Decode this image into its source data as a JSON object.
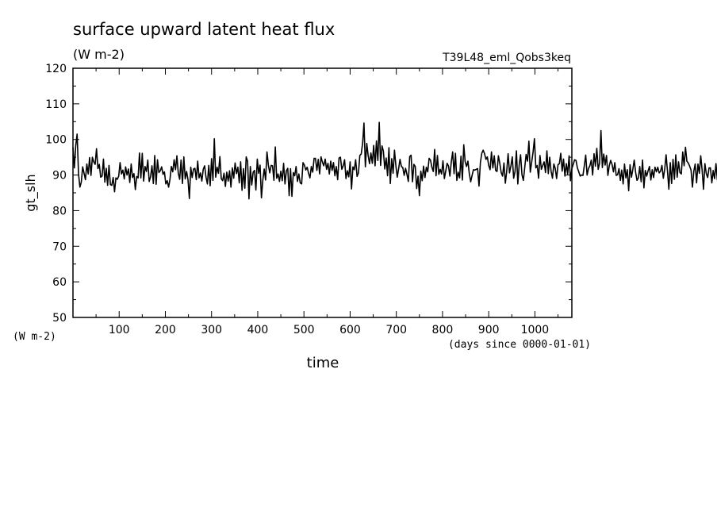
{
  "chart_data": {
    "type": "line",
    "title": "surface upward latent heat flux",
    "subtitle": "(W m-2)",
    "experiment": "T39L48_eml_Qobs3keq",
    "xlabel": "time",
    "xunits": "(days since 0000-01-01)",
    "ylabel": "gt_slh",
    "yunits": "(W m-2)",
    "xlim": [
      0,
      1080
    ],
    "ylim": [
      50,
      120
    ],
    "xticks": [
      100,
      200,
      300,
      400,
      500,
      600,
      700,
      800,
      900,
      1000
    ],
    "yticks": [
      50,
      60,
      70,
      80,
      90,
      100,
      110,
      120
    ],
    "grid": false,
    "series": [
      {
        "x_start": 0,
        "x_step": 3,
        "values": [
          97.8,
          92.0,
          98.3,
          101.5,
          90.4,
          86.6,
          88.0,
          92.3,
          90.5,
          88.7,
          93.1,
          90.3,
          94.9,
          89.9,
          95.0,
          93.7,
          93.0,
          97.4,
          91.8,
          93.0,
          89.4,
          89.7,
          94.5,
          88.0,
          91.9,
          87.1,
          92.7,
          87.3,
          87.1,
          89.3,
          85.3,
          89.2,
          88.8,
          89.7,
          93.5,
          90.3,
          91.4,
          88.9,
          92.3,
          90.0,
          91.7,
          87.9,
          93.1,
          89.3,
          90.4,
          85.9,
          89.6,
          89.2,
          96.2,
          89.2,
          96.1,
          88.3,
          92.4,
          91.0,
          94.2,
          88.2,
          89.5,
          92.6,
          87.6,
          95.5,
          87.4,
          94.3,
          90.7,
          91.2,
          92.3,
          90.2,
          90.9,
          87.5,
          88.4,
          86.6,
          88.8,
          92.4,
          90.9,
          94.3,
          91.5,
          95.4,
          90.5,
          88.8,
          94.2,
          87.6,
          95.1,
          88.9,
          91.0,
          88.7,
          83.4,
          92.2,
          89.3,
          91.7,
          91.9,
          88.7,
          93.9,
          89.2,
          90.6,
          88.3,
          91.6,
          92.6,
          89.4,
          87.5,
          92.7,
          87.0,
          94.6,
          88.5,
          100.2,
          89.4,
          92.2,
          90.5,
          95.2,
          89.0,
          88.4,
          90.5,
          86.8,
          90.8,
          88.3,
          91.2,
          86.6,
          92.0,
          89.1,
          93.4,
          90.4,
          92.2,
          87.8,
          93.7,
          85.7,
          91.8,
          86.3,
          95.1,
          93.9,
          83.3,
          92.4,
          87.2,
          90.8,
          91.3,
          85.8,
          94.5,
          90.5,
          92.8,
          83.6,
          88.6,
          91.7,
          88.6,
          96.5,
          92.8,
          90.6,
          92.7,
          92.6,
          88.5,
          97.9,
          89.1,
          90.3,
          88.2,
          91.1,
          88.4,
          93.3,
          87.5,
          91.2,
          91.9,
          84.2,
          91.8,
          84.0,
          90.7,
          89.8,
          92.4,
          88.2,
          90.3,
          87.8,
          87.5,
          93.5,
          92.8,
          91.4,
          92.2,
          90.5,
          89.2,
          92.4,
          90.8,
          94.7,
          94.7,
          91.3,
          94.4,
          90.3,
          95.1,
          93.6,
          92.6,
          94.5,
          91.6,
          93.3,
          90.3,
          93.9,
          91.3,
          93.5,
          89.8,
          92.4,
          88.7,
          94.8,
          95.0,
          91.6,
          92.6,
          94.3,
          89.0,
          91.2,
          89.5,
          93.7,
          86.1,
          92.3,
          91.5,
          94.3,
          89.6,
          90.6,
          95.5,
          95.9,
          98.9,
          104.6,
          92.3,
          98.9,
          95.5,
          93.2,
          96.2,
          93.3,
          98.3,
          92.6,
          99.6,
          94.1,
          104.8,
          92.7,
          98.2,
          96.7,
          91.7,
          94.8,
          89.8,
          97.7,
          87.6,
          94.6,
          90.5,
          97.0,
          92.7,
          89.4,
          91.8,
          94.4,
          92.4,
          92.1,
          89.9,
          91.9,
          90.2,
          88.2,
          95.2,
          95.6,
          88.1,
          93.0,
          92.4,
          86.2,
          89.7,
          84.2,
          91.1,
          88.4,
          92.5,
          89.3,
          92.2,
          90.9,
          94.7,
          94.2,
          92.2,
          91.0,
          97.2,
          89.8,
          95.5,
          90.2,
          91.6,
          90.3,
          94.0,
          89.0,
          91.1,
          93.3,
          92.5,
          89.7,
          93.7,
          96.5,
          90.4,
          96.1,
          88.5,
          90.8,
          89.2,
          95.3,
          88.6,
          98.5,
          93.8,
          92.4,
          93.9,
          90.4,
          88.1,
          89.9,
          91.5,
          91.4,
          91.6,
          91.8,
          86.9,
          93.5,
          96.1,
          97.0,
          96.0,
          94.4,
          95.1,
          92.7,
          91.5,
          96.5,
          92.0,
          95.4,
          91.3,
          91.0,
          95.4,
          93.3,
          90.7,
          89.7,
          93.4,
          87.7,
          91.1,
          96.0,
          90.6,
          92.5,
          95.1,
          89.1,
          91.0,
          96.8,
          87.5,
          92.9,
          95.7,
          90.1,
          88.5,
          92.1,
          95.8,
          93.9,
          99.5,
          90.8,
          93.6,
          96.4,
          100.2,
          92.0,
          92.7,
          89.1,
          95.5,
          91.6,
          92.7,
          93.7,
          90.7,
          96.8,
          90.4,
          95.0,
          91.1,
          89.1,
          93.1,
          91.9,
          89.0,
          92.9,
          93.2,
          96.1,
          91.1,
          94.5,
          89.7,
          93.2,
          90.3,
          95.4,
          88.4,
          91.8,
          93.0,
          94.3,
          94.1,
          92.0,
          90.9,
          89.7,
          90.0,
          89.9,
          92.6,
          95.6,
          90.0,
          91.8,
          92.6,
          94.2,
          90.0,
          96.0,
          92.5,
          97.5,
          91.6,
          93.3,
          102.5,
          92.1,
          95.9,
          92.8,
          95.5,
          89.9,
          92.6,
          94.1,
          93.0,
          90.9,
          93.5,
          89.9,
          90.1,
          91.8,
          88.5,
          91.4,
          87.5,
          93.1,
          89.2,
          91.5,
          85.6,
          92.9,
          89.4,
          91.6,
          94.2,
          90.8,
          88.5,
          89.2,
          92.4,
          88.1,
          94.2,
          86.4,
          91.3,
          89.7,
          91.2,
          92.4,
          88.6,
          91.5,
          89.3,
          92.2,
          90.9,
          92.2,
          90.6,
          91.1,
          92.7,
          89.1,
          91.6,
          95.7,
          91.1,
          86.0,
          93.5,
          87.6,
          94.4,
          88.8,
          95.7,
          89.4,
          93.7,
          90.7,
          90.3,
          96.5,
          92.6,
          97.8,
          93.9,
          93.4,
          92.5,
          91.4,
          86.6,
          91.1,
          93.1,
          87.8,
          93.1,
          90.5,
          95.4,
          91.4,
          86.0,
          93.2,
          90.4,
          89.3,
          92.0,
          92.0,
          87.8,
          91.3,
          89.0,
          93.2,
          88.6,
          92.3,
          93.7,
          89.2,
          92.7,
          91.0,
          89.3,
          90.1,
          90.6,
          92.7
        ]
      }
    ]
  }
}
